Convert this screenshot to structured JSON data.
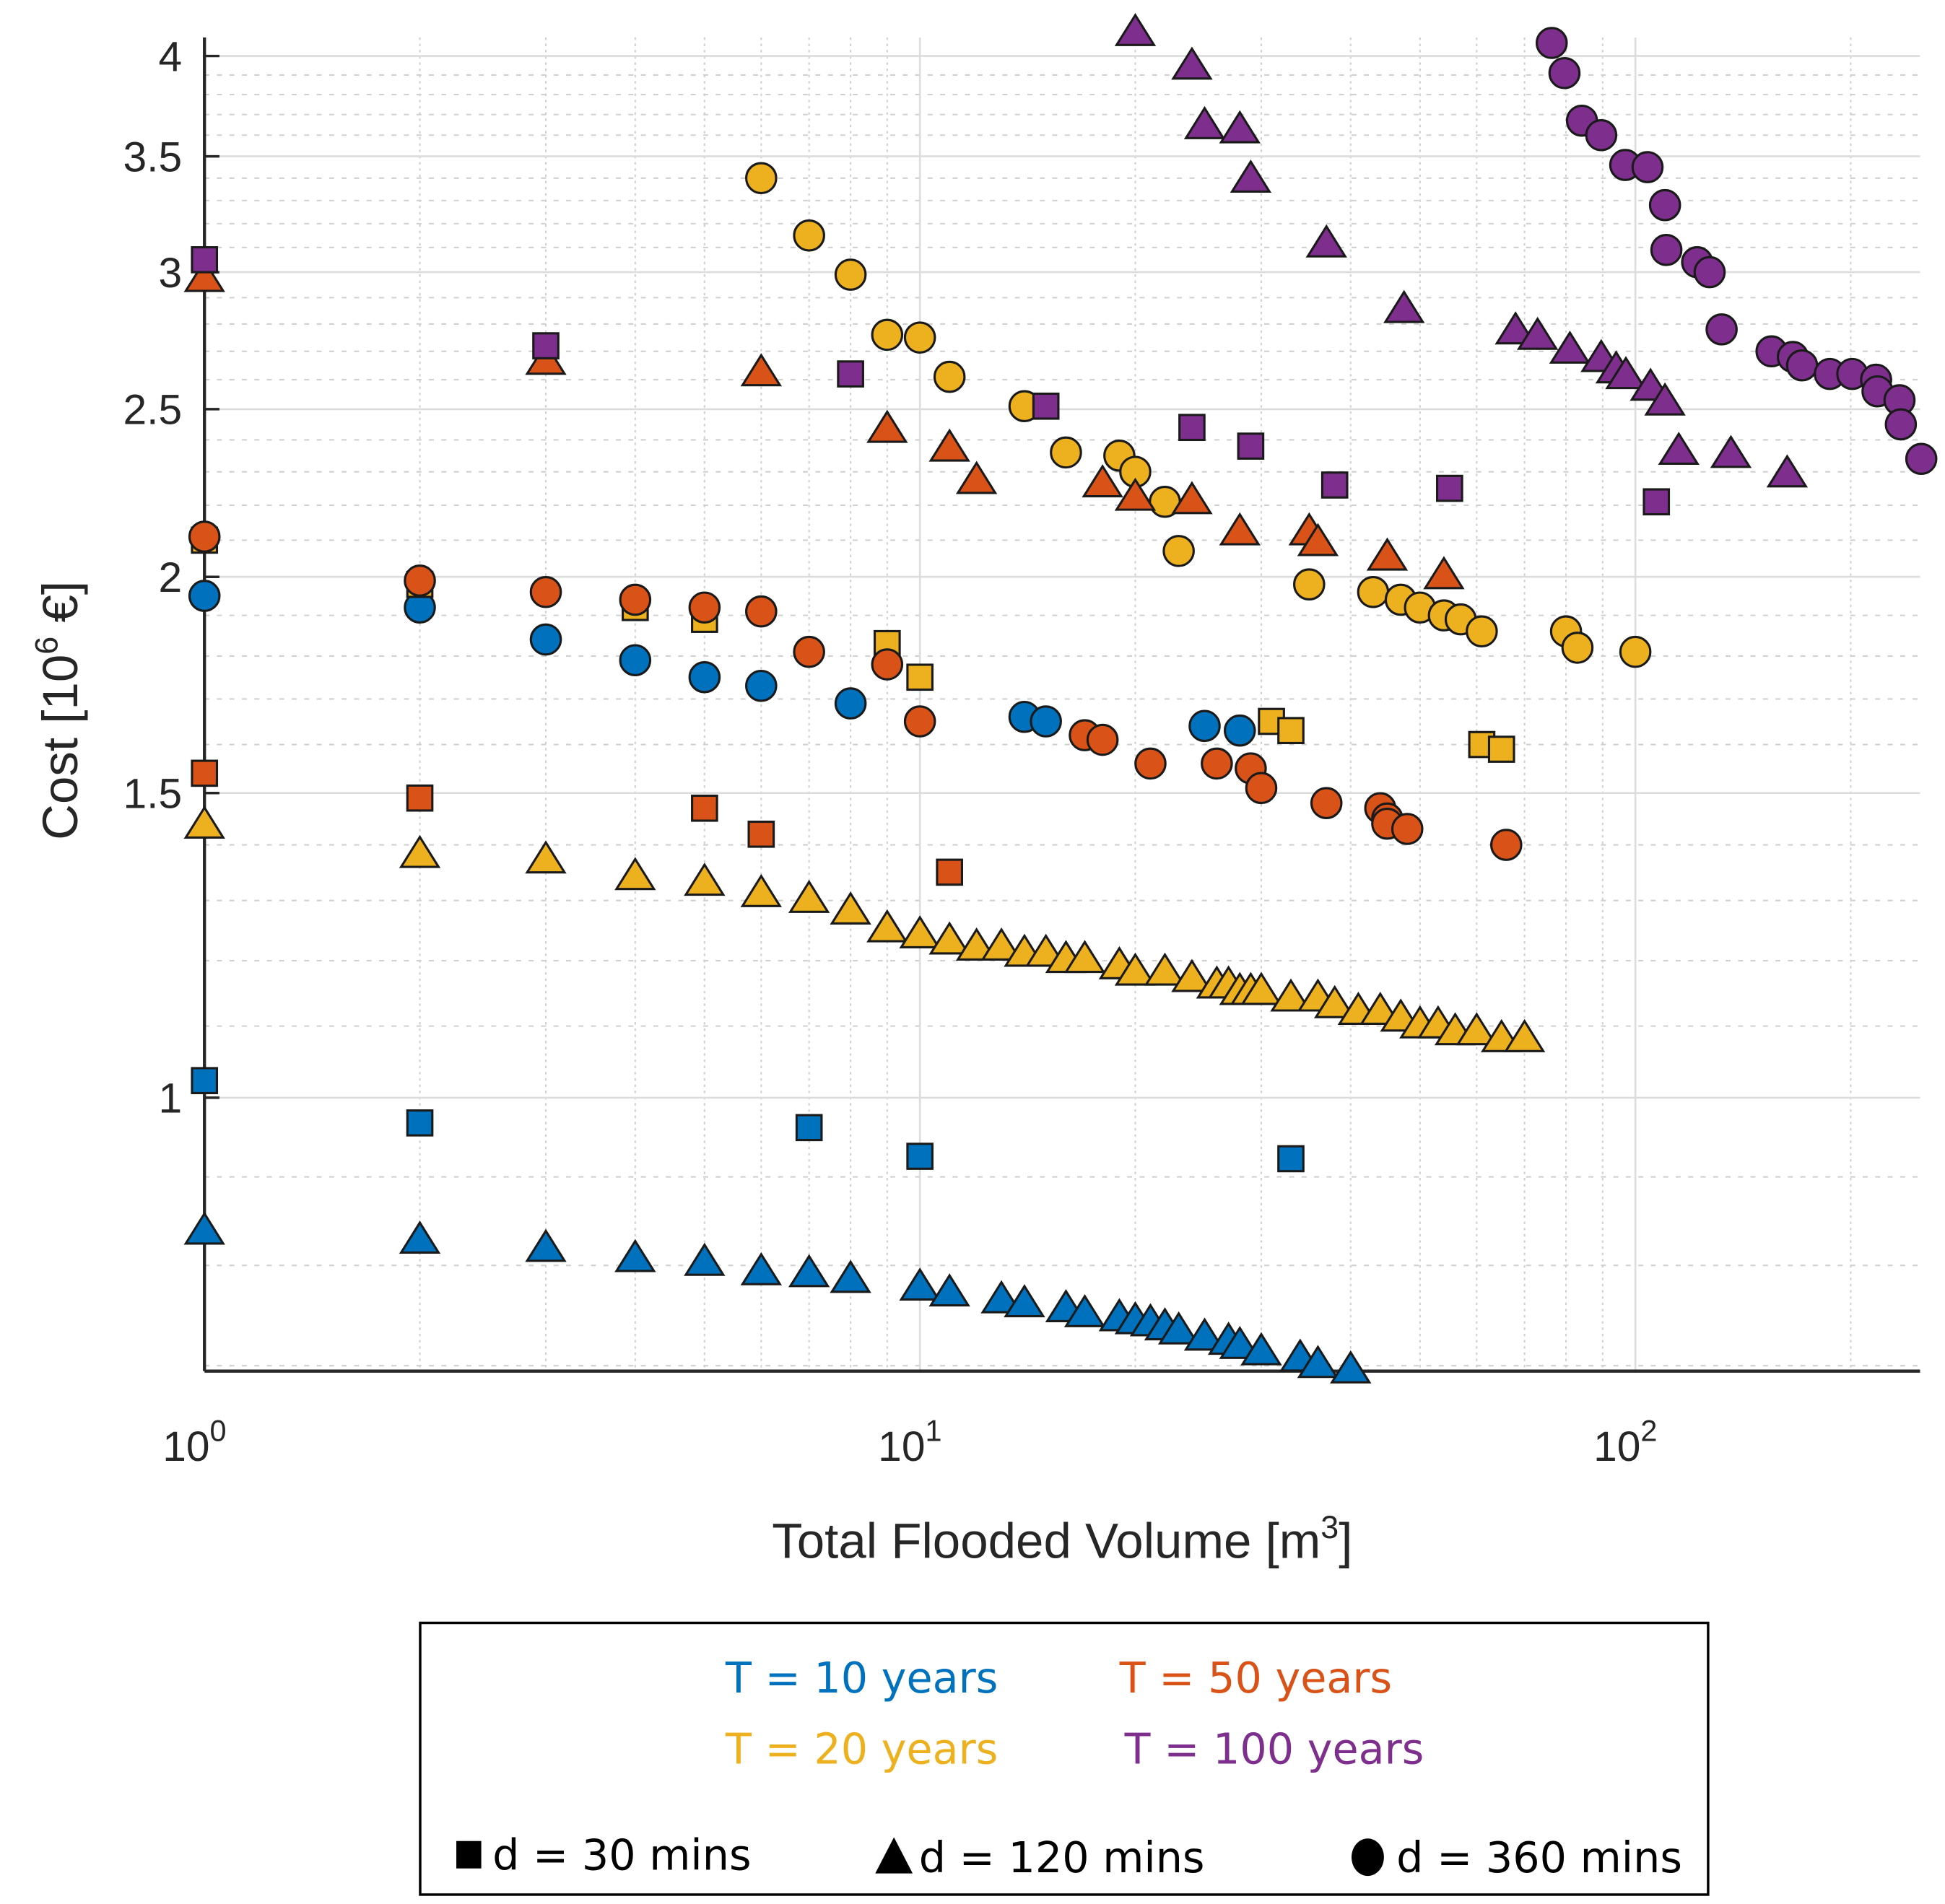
{
  "chart_data": {
    "type": "scatter",
    "title": "",
    "xlabel": "Total Flooded Volume [m",
    "xlabel_sup": "3",
    "xlabel_end": "]",
    "ylabel": "Cost [10",
    "ylabel_sup": "6",
    "ylabel_end": " €]",
    "xscale": "log",
    "yscale": "log",
    "xlim": [
      1,
      250
    ],
    "ylim": [
      0.695,
      4.1
    ],
    "grid": true,
    "xticks": [
      {
        "value": 1,
        "base": "10",
        "exp": "0"
      },
      {
        "value": 10,
        "base": "10",
        "exp": "1"
      },
      {
        "value": 100,
        "base": "10",
        "exp": "2"
      }
    ],
    "yticks": [
      {
        "value": 1,
        "label": "1"
      },
      {
        "value": 1.5,
        "label": "1.5"
      },
      {
        "value": 2,
        "label": "2"
      },
      {
        "value": 2.5,
        "label": "2.5"
      },
      {
        "value": 3,
        "label": "3"
      },
      {
        "value": 3.5,
        "label": "3.5"
      },
      {
        "value": 4,
        "label": "4"
      }
    ],
    "colors": {
      "T10": "#0072BD",
      "T20": "#EDB120",
      "T50": "#D95319",
      "T100": "#7E2F8E"
    },
    "series": [
      {
        "name": "T=10, d=30",
        "color": "#0072BD",
        "marker": "square",
        "points": [
          [
            1,
            1.023
          ],
          [
            2,
            0.967
          ],
          [
            7,
            0.961
          ],
          [
            10,
            0.925
          ],
          [
            33,
            0.922
          ]
        ]
      },
      {
        "name": "T=10, d=120",
        "color": "#0072BD",
        "marker": "triangle",
        "points": [
          [
            1,
            0.836
          ],
          [
            2,
            0.826
          ],
          [
            3,
            0.817
          ],
          [
            4,
            0.806
          ],
          [
            5,
            0.802
          ],
          [
            6,
            0.792
          ],
          [
            7,
            0.79
          ],
          [
            8,
            0.784
          ],
          [
            10,
            0.776
          ],
          [
            11,
            0.77
          ],
          [
            13,
            0.763
          ],
          [
            14,
            0.759
          ],
          [
            16,
            0.754
          ],
          [
            17,
            0.749
          ],
          [
            19,
            0.745
          ],
          [
            20,
            0.742
          ],
          [
            21,
            0.74
          ],
          [
            22,
            0.736
          ],
          [
            23,
            0.732
          ],
          [
            25,
            0.726
          ],
          [
            27,
            0.722
          ],
          [
            28,
            0.718
          ],
          [
            30,
            0.712
          ],
          [
            34,
            0.706
          ],
          [
            36,
            0.7
          ],
          [
            40,
            0.695
          ]
        ]
      },
      {
        "name": "T=10, d=360",
        "color": "#0072BD",
        "marker": "circle",
        "points": [
          [
            1,
            1.95
          ],
          [
            2,
            1.92
          ],
          [
            3,
            1.84
          ],
          [
            4,
            1.79
          ],
          [
            5,
            1.75
          ],
          [
            6,
            1.73
          ],
          [
            8,
            1.69
          ],
          [
            14,
            1.66
          ],
          [
            15,
            1.65
          ],
          [
            25,
            1.64
          ],
          [
            28,
            1.63
          ]
        ]
      },
      {
        "name": "T=20, d=30",
        "color": "#EDB120",
        "marker": "square",
        "points": [
          [
            1,
            2.1
          ],
          [
            2,
            1.98
          ],
          [
            4,
            1.92
          ],
          [
            5,
            1.89
          ],
          [
            9,
            1.83
          ],
          [
            10,
            1.75
          ],
          [
            31,
            1.65
          ],
          [
            33,
            1.63
          ],
          [
            61,
            1.6
          ],
          [
            65,
            1.59
          ]
        ]
      },
      {
        "name": "T=20, d=120",
        "color": "#EDB120",
        "marker": "triangle",
        "points": [
          [
            1,
            1.435
          ],
          [
            2,
            1.38
          ],
          [
            3,
            1.37
          ],
          [
            4,
            1.34
          ],
          [
            5,
            1.33
          ],
          [
            6,
            1.31
          ],
          [
            7,
            1.3
          ],
          [
            8,
            1.28
          ],
          [
            9,
            1.25
          ],
          [
            10,
            1.24
          ],
          [
            11,
            1.23
          ],
          [
            12,
            1.22
          ],
          [
            13,
            1.22
          ],
          [
            14,
            1.21
          ],
          [
            15,
            1.21
          ],
          [
            16,
            1.2
          ],
          [
            17,
            1.2
          ],
          [
            19,
            1.19
          ],
          [
            20,
            1.18
          ],
          [
            22,
            1.18
          ],
          [
            24,
            1.17
          ],
          [
            26,
            1.16
          ],
          [
            27,
            1.16
          ],
          [
            28,
            1.15
          ],
          [
            29,
            1.15
          ],
          [
            30,
            1.15
          ],
          [
            33,
            1.14
          ],
          [
            36,
            1.14
          ],
          [
            38,
            1.13
          ],
          [
            41,
            1.12
          ],
          [
            44,
            1.12
          ],
          [
            47,
            1.11
          ],
          [
            50,
            1.1
          ],
          [
            53,
            1.1
          ],
          [
            56,
            1.09
          ],
          [
            60,
            1.09
          ],
          [
            65,
            1.08
          ],
          [
            70,
            1.08
          ]
        ]
      },
      {
        "name": "T=20, d=360",
        "color": "#EDB120",
        "marker": "circle",
        "points": [
          [
            6,
            3.4
          ],
          [
            7,
            3.15
          ],
          [
            8,
            2.99
          ],
          [
            9,
            2.76
          ],
          [
            10,
            2.75
          ],
          [
            11,
            2.61
          ],
          [
            14,
            2.51
          ],
          [
            16,
            2.36
          ],
          [
            19,
            2.35
          ],
          [
            20,
            2.3
          ],
          [
            22,
            2.21
          ],
          [
            23,
            2.07
          ],
          [
            35,
            1.98
          ],
          [
            43,
            1.96
          ],
          [
            47,
            1.94
          ],
          [
            50,
            1.92
          ],
          [
            54,
            1.9
          ],
          [
            57,
            1.89
          ],
          [
            61,
            1.86
          ],
          [
            80,
            1.86
          ],
          [
            83,
            1.82
          ],
          [
            100,
            1.81
          ]
        ]
      },
      {
        "name": "T=50, d=30",
        "color": "#D95319",
        "marker": "square",
        "points": [
          [
            1,
            1.54
          ],
          [
            2,
            1.49
          ],
          [
            5,
            1.47
          ],
          [
            6,
            1.42
          ],
          [
            11,
            1.35
          ]
        ]
      },
      {
        "name": "T=50, d=120",
        "color": "#D95319",
        "marker": "triangle",
        "points": [
          [
            1,
            2.97
          ],
          [
            3,
            2.66
          ],
          [
            6,
            2.62
          ],
          [
            9,
            2.43
          ],
          [
            11,
            2.37
          ],
          [
            12,
            2.27
          ],
          [
            18,
            2.26
          ],
          [
            20,
            2.22
          ],
          [
            24,
            2.21
          ],
          [
            28,
            2.12
          ],
          [
            35,
            2.12
          ],
          [
            36,
            2.09
          ],
          [
            45,
            2.05
          ],
          [
            54,
            2.0
          ]
        ]
      },
      {
        "name": "T=50, d=360",
        "color": "#D95319",
        "marker": "circle",
        "points": [
          [
            1,
            2.11
          ],
          [
            2,
            1.99
          ],
          [
            3,
            1.96
          ],
          [
            4,
            1.94
          ],
          [
            5,
            1.92
          ],
          [
            6,
            1.91
          ],
          [
            7,
            1.81
          ],
          [
            9,
            1.78
          ],
          [
            10,
            1.65
          ],
          [
            17,
            1.62
          ],
          [
            18,
            1.61
          ],
          [
            21,
            1.56
          ],
          [
            26,
            1.56
          ],
          [
            29,
            1.55
          ],
          [
            30,
            1.51
          ],
          [
            37,
            1.48
          ],
          [
            44,
            1.47
          ],
          [
            45,
            1.45
          ],
          [
            45,
            1.44
          ],
          [
            48,
            1.43
          ],
          [
            66,
            1.4
          ]
        ]
      },
      {
        "name": "T=100, d=30",
        "color": "#7E2F8E",
        "marker": "square",
        "points": [
          [
            1,
            3.05
          ],
          [
            3,
            2.72
          ],
          [
            8,
            2.62
          ],
          [
            15,
            2.51
          ],
          [
            24,
            2.44
          ],
          [
            29,
            2.38
          ],
          [
            38,
            2.26
          ],
          [
            55,
            2.25
          ],
          [
            107,
            2.21
          ]
        ]
      },
      {
        "name": "T=100, d=120",
        "color": "#7E2F8E",
        "marker": "triangle",
        "points": [
          [
            20,
            4.12
          ],
          [
            24,
            3.94
          ],
          [
            25,
            3.64
          ],
          [
            28,
            3.62
          ],
          [
            29,
            3.39
          ],
          [
            37,
            3.11
          ],
          [
            47.5,
            2.85
          ],
          [
            68,
            2.77
          ],
          [
            73,
            2.75
          ],
          [
            81,
            2.7
          ],
          [
            89.6,
            2.67
          ],
          [
            94,
            2.63
          ],
          [
            97,
            2.61
          ],
          [
            105,
            2.57
          ],
          [
            110,
            2.52
          ],
          [
            115,
            2.36
          ],
          [
            136,
            2.35
          ],
          [
            163,
            2.29
          ]
        ]
      },
      {
        "name": "T=100, d=360",
        "color": "#7E2F8E",
        "marker": "circle",
        "points": [
          [
            76.4,
            4.07
          ],
          [
            79.6,
            3.91
          ],
          [
            84.2,
            3.67
          ],
          [
            89.6,
            3.6
          ],
          [
            96.8,
            3.46
          ],
          [
            104,
            3.45
          ],
          [
            110,
            3.28
          ],
          [
            110.5,
            3.09
          ],
          [
            122,
            3.04
          ],
          [
            127,
            3.0
          ],
          [
            132,
            2.78
          ],
          [
            155,
            2.7
          ],
          [
            166,
            2.68
          ],
          [
            171,
            2.65
          ],
          [
            187,
            2.62
          ],
          [
            201,
            2.62
          ],
          [
            217,
            2.6
          ],
          [
            218,
            2.56
          ],
          [
            234,
            2.53
          ],
          [
            235,
            2.45
          ],
          [
            251,
            2.34
          ]
        ]
      }
    ],
    "legend": {
      "placement": "bottom",
      "periods": [
        {
          "label": "T = 10 years",
          "color": "#0072BD"
        },
        {
          "label": "T = 50 years",
          "color": "#D95319"
        },
        {
          "label": "T = 20 years",
          "color": "#EDB120"
        },
        {
          "label": "T = 100 years",
          "color": "#7E2F8E"
        }
      ],
      "durations": [
        {
          "label": "d = 30 mins",
          "marker": "square"
        },
        {
          "label": "d = 120 mins",
          "marker": "triangle"
        },
        {
          "label": "d = 360 mins",
          "marker": "circle"
        }
      ]
    }
  }
}
